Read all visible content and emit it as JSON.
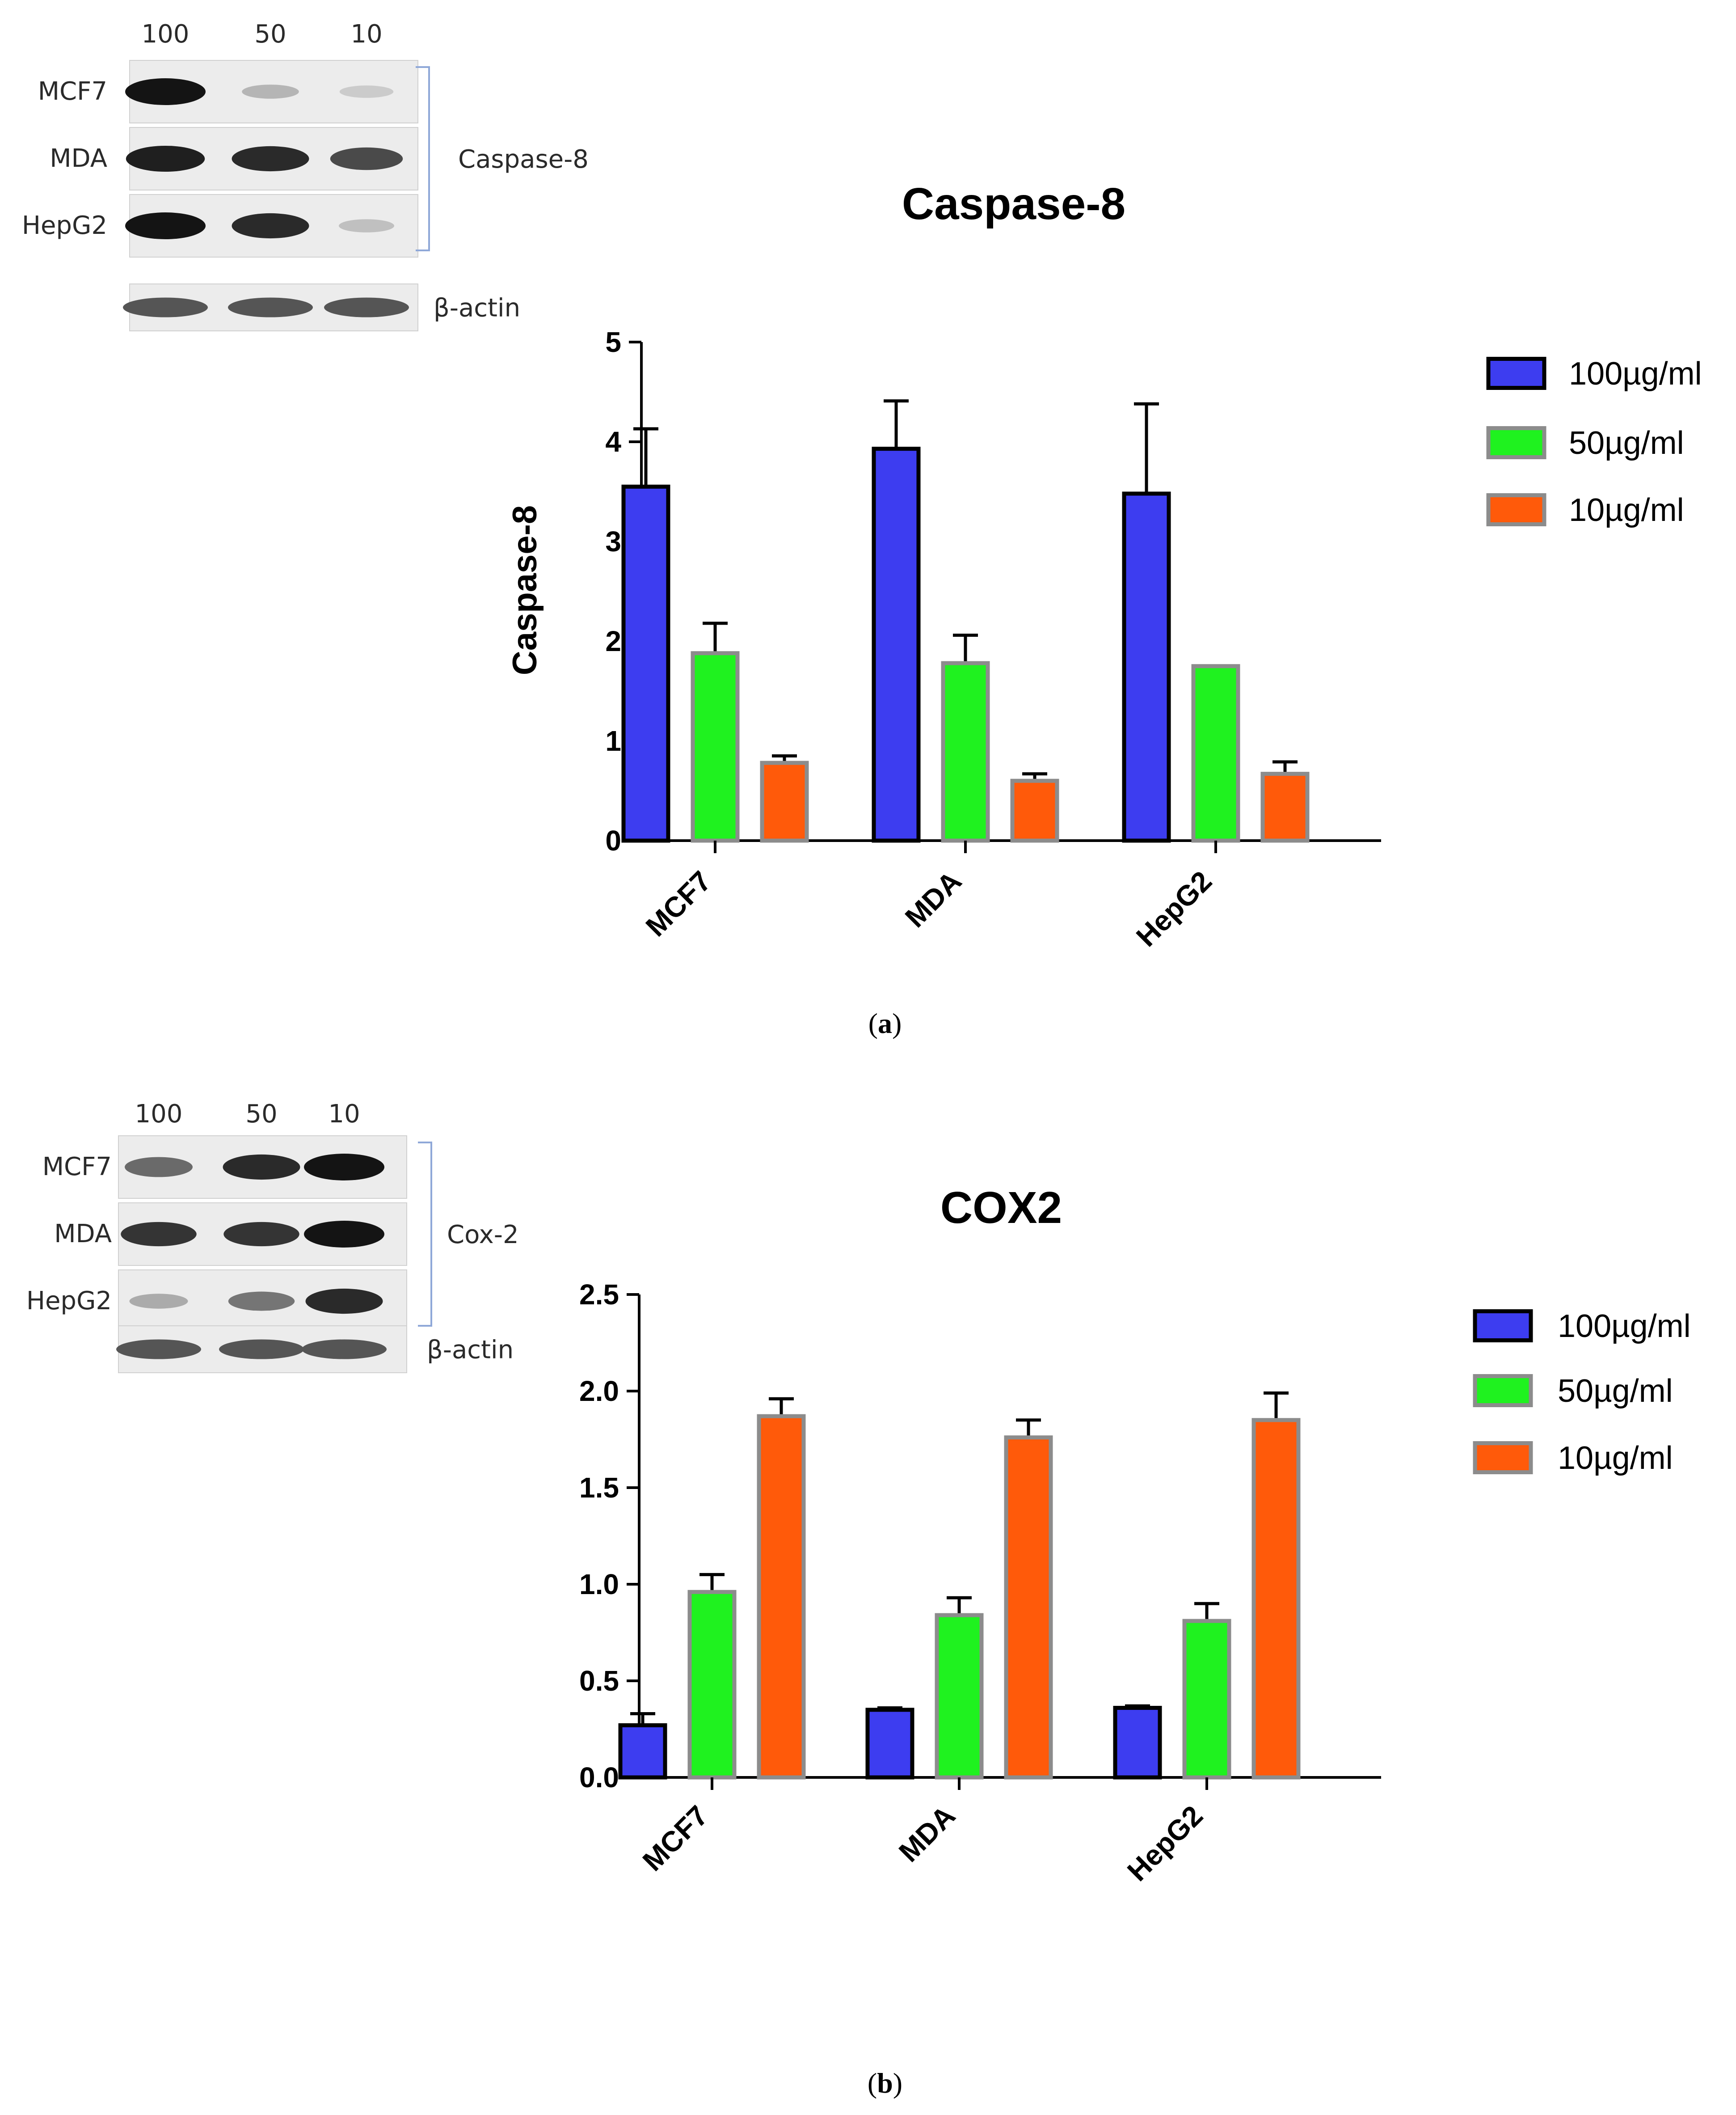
{
  "panels": [
    {
      "caption_letter": "a",
      "blot": {
        "lane_labels": [
          "100",
          "50",
          "10"
        ],
        "rows": [
          "MCF7",
          "MDA",
          "HepG2"
        ],
        "marker": "Caspase-8",
        "loading_control": "β-actin",
        "intensities": [
          [
            1.0,
            0.25,
            0.15
          ],
          [
            0.95,
            0.9,
            0.75
          ],
          [
            1.0,
            0.9,
            0.2
          ]
        ]
      },
      "chart_data": {
        "type": "bar",
        "title": "Caspase-8",
        "ylabel": "Caspase-8",
        "xlabel": "",
        "categories": [
          "MCF7",
          "MDA",
          "HepG2"
        ],
        "yticks": [
          "0",
          "1",
          "2",
          "3",
          "4",
          "5"
        ],
        "ylim": [
          0,
          5
        ],
        "legend_position": "right",
        "series": [
          {
            "name": "100µg/ml",
            "color": "#3d3df0",
            "values": [
              3.55,
              3.93,
              3.48
            ],
            "errors": [
              0.58,
              0.48,
              0.9
            ]
          },
          {
            "name": "50µg/ml",
            "color": "#1ff21f",
            "values": [
              1.88,
              1.78,
              1.75
            ],
            "errors": [
              0.3,
              0.28,
              0.0
            ]
          },
          {
            "name": "10µg/ml",
            "color": "#ff5a0a",
            "values": [
              0.78,
              0.6,
              0.67
            ],
            "errors": [
              0.07,
              0.07,
              0.12
            ]
          }
        ]
      }
    },
    {
      "caption_letter": "b",
      "blot": {
        "lane_labels": [
          "100",
          "50",
          "10"
        ],
        "rows": [
          "MCF7",
          "MDA",
          "HepG2"
        ],
        "marker": "Cox-2",
        "loading_control": "β-actin",
        "intensities": [
          [
            0.6,
            0.9,
            1.0
          ],
          [
            0.85,
            0.85,
            1.0
          ],
          [
            0.3,
            0.55,
            0.9
          ]
        ]
      },
      "chart_data": {
        "type": "bar",
        "title": "COX2",
        "ylabel": "",
        "xlabel": "",
        "categories": [
          "MCF7",
          "MDA",
          "HepG2"
        ],
        "yticks": [
          "0.0",
          "0.5",
          "1.0",
          "1.5",
          "2.0",
          "2.5"
        ],
        "ylim": [
          0,
          2.5
        ],
        "legend_position": "right",
        "series": [
          {
            "name": "100µg/ml",
            "color": "#3d3df0",
            "values": [
              0.27,
              0.35,
              0.36
            ],
            "errors": [
              0.06,
              0.01,
              0.01
            ]
          },
          {
            "name": "50µg/ml",
            "color": "#1ff21f",
            "values": [
              0.96,
              0.84,
              0.81
            ],
            "errors": [
              0.09,
              0.09,
              0.09
            ]
          },
          {
            "name": "10µg/ml",
            "color": "#ff5a0a",
            "values": [
              1.87,
              1.76,
              1.85
            ],
            "errors": [
              0.09,
              0.09,
              0.14
            ]
          }
        ]
      }
    }
  ]
}
